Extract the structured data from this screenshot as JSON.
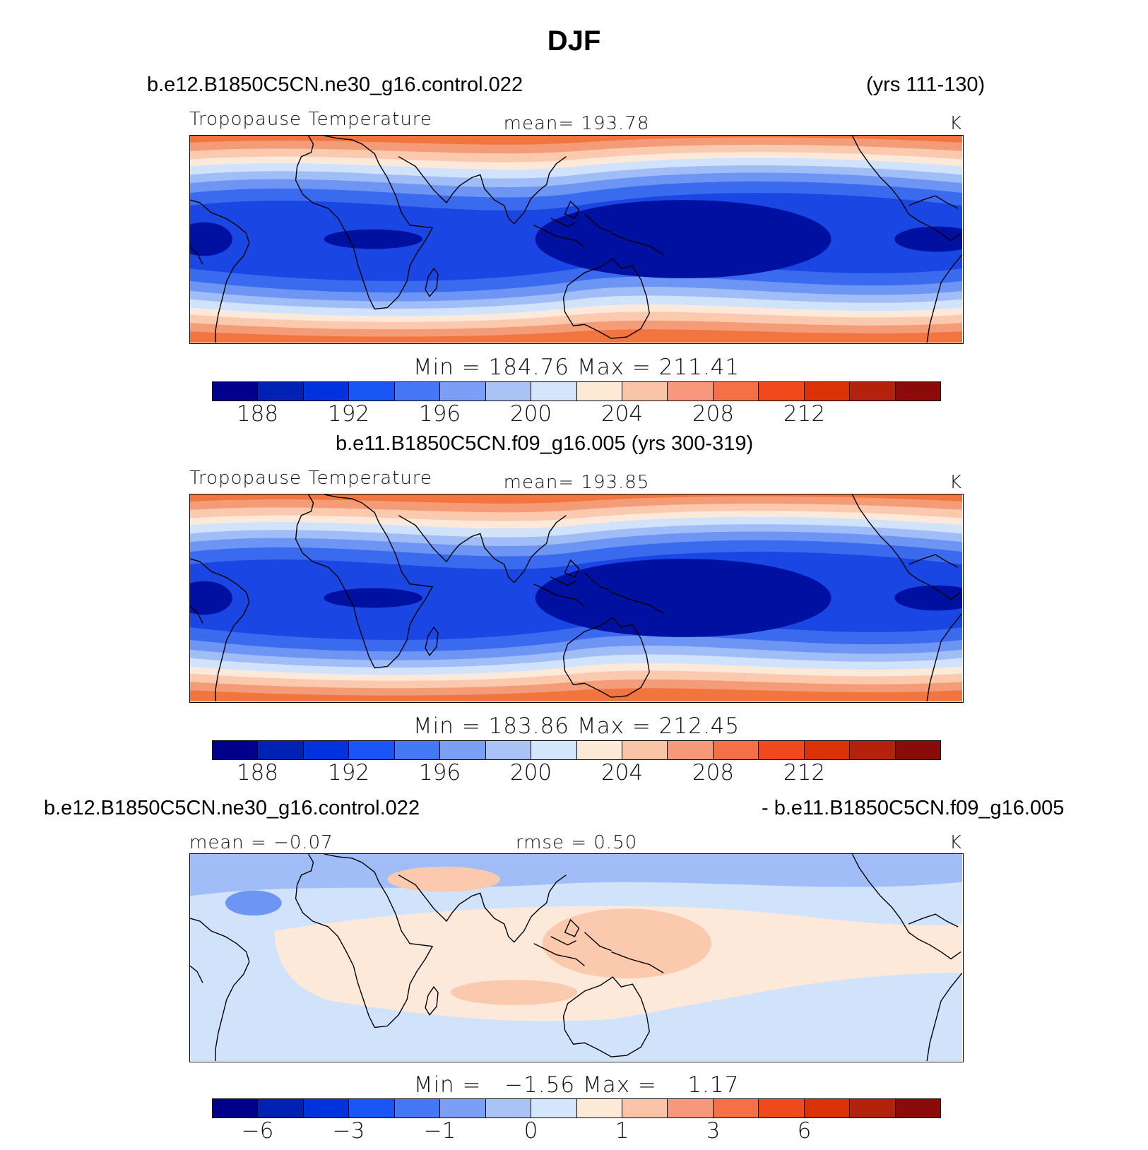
{
  "figure": {
    "title": "DJF"
  },
  "palette": {
    "default": [
      "#00008B",
      "#0022B4",
      "#0033DD",
      "#1A55F5",
      "#4478F5",
      "#7B9FF5",
      "#A9C3F6",
      "#D4E6FB",
      "#FDEAD6",
      "#FBC4A9",
      "#F6997A",
      "#F47047",
      "#F04A1C",
      "#DA3206",
      "#B5220B",
      "#8B0A0A"
    ],
    "bands": [
      "#0010A0",
      "#1A47E3",
      "#3A6BEF",
      "#6D95F4",
      "#A0BDF7",
      "#D0E3FB",
      "#FDE9DA",
      "#FBC9AE",
      "#F49C77",
      "#F2743F"
    ],
    "continents": "#000000"
  },
  "panels": [
    {
      "title_left": "b.e12.B1850C5CN.ne30_g16.control.022",
      "title_right": "(yrs 111-130)",
      "left_label": "Tropopause Temperature",
      "center_label": "mean= 193.78",
      "right_label": "K",
      "min_max": "Min = 184.76 Max = 211.41",
      "ticks": [
        "188",
        "192",
        "196",
        "200",
        "204",
        "208",
        "212"
      ],
      "field": {
        "kind": "absolute",
        "min": 184.76,
        "max": 211.41,
        "mean": 193.78
      }
    },
    {
      "title_center": "b.e11.B1850C5CN.f09_g16.005 (yrs 300-319)",
      "left_label": "Tropopause Temperature",
      "center_label": "mean= 193.85",
      "right_label": "K",
      "min_max": "Min = 183.86 Max = 212.45",
      "ticks": [
        "188",
        "192",
        "196",
        "200",
        "204",
        "208",
        "212"
      ],
      "field": {
        "kind": "absolute",
        "min": 183.86,
        "max": 212.45,
        "mean": 193.85
      }
    },
    {
      "title_left": "b.e12.B1850C5CN.ne30_g16.control.022",
      "title_right": "- b.e11.B1850C5CN.f09_g16.005",
      "left_label": "mean =   −0.07",
      "center_label": "rmse =    0.50",
      "right_label": "K",
      "min_max": "Min =   −1.56 Max =    1.17",
      "ticks": [
        "−6",
        "−3",
        "−1",
        "0",
        "1",
        "3",
        "6"
      ],
      "field": {
        "kind": "difference",
        "min": -1.56,
        "max": 1.17,
        "mean": -0.07,
        "rmse": 0.5
      }
    }
  ]
}
